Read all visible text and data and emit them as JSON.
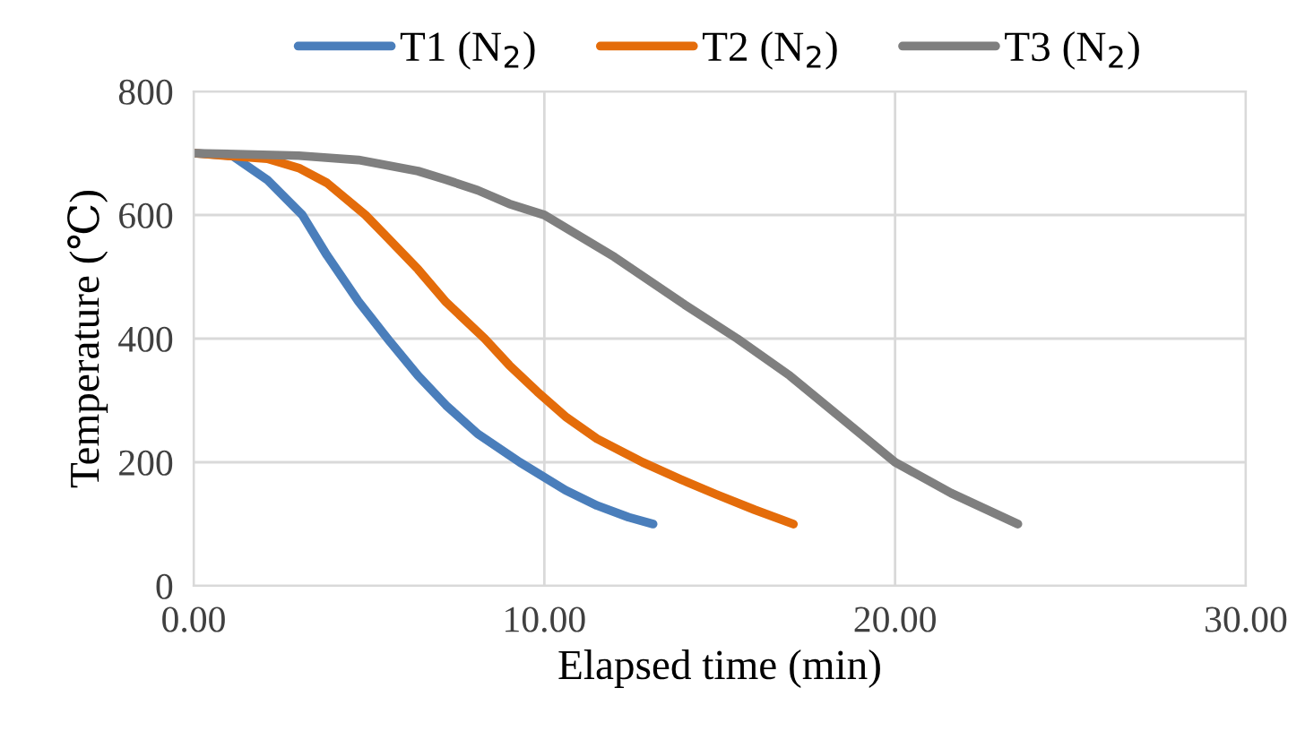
{
  "chart_data": {
    "type": "line",
    "xlabel": "Elapsed time (min)",
    "ylabel": "Temperature (℃)",
    "xlim": [
      0,
      30
    ],
    "xticks": [
      {
        "value": 0,
        "label": "0.00"
      },
      {
        "value": 10,
        "label": "10.00"
      },
      {
        "value": 20,
        "label": "20.00"
      },
      {
        "value": 30,
        "label": "30.00"
      }
    ],
    "ylim": [
      0,
      800
    ],
    "yticks": [
      0,
      200,
      400,
      600,
      800
    ],
    "grid": true,
    "legend": "top",
    "marker": "none",
    "line_style": "solid",
    "series": [
      {
        "name": "T1 (N$_{2}$)",
        "color": "#4a7ebb",
        "x": [
          0,
          1.1,
          2.1,
          3.1,
          3.8,
          4.7,
          5.6,
          6.4,
          7.2,
          8.1,
          9.3,
          10.6,
          11.5,
          12.4,
          13.1
        ],
        "values": [
          700,
          696,
          657,
          600,
          535,
          460,
          395,
          340,
          292,
          246,
          200,
          155,
          130,
          111,
          100
        ]
      },
      {
        "name": "T2 (N$_{2}$)",
        "color": "#e46c0a",
        "x": [
          0,
          2.1,
          3.0,
          3.8,
          4.9,
          5.5,
          6.4,
          7.2,
          8.3,
          9.0,
          9.8,
          10.6,
          11.5,
          12.8,
          13.9,
          14.9,
          16.0,
          17.1
        ],
        "values": [
          700,
          691,
          676,
          652,
          600,
          565,
          512,
          459,
          400,
          357,
          314,
          274,
          238,
          200,
          172,
          148,
          123,
          100
        ]
      },
      {
        "name": "T3 (N$_{2}$)",
        "color": "#7f7f7f",
        "x": [
          0,
          3.0,
          4.7,
          6.4,
          7.2,
          8.1,
          9.0,
          10.0,
          12.0,
          14.0,
          15.5,
          17.0,
          18.5,
          20.0,
          21.6,
          23.5
        ],
        "values": [
          700,
          696,
          689,
          671,
          657,
          640,
          618,
          600,
          532,
          455,
          400,
          340,
          270,
          200,
          150,
          100
        ]
      }
    ]
  }
}
